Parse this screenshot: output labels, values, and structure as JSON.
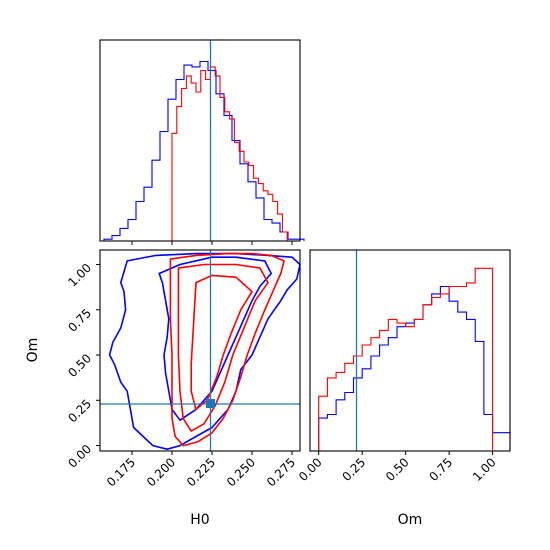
{
  "colors": {
    "series1": "#0000ff",
    "series2": "#ff0000",
    "truth": "#1f77b4",
    "axis": "#000000"
  },
  "chart_data": {
    "type": "corner",
    "parameters": [
      "H0",
      "Om"
    ],
    "truth": {
      "H0": 0.227,
      "Om": 0.22
    },
    "panels": [
      {
        "id": "hist-H0",
        "type": "histogram",
        "xlim": [
          0.155,
          0.28
        ],
        "ylim": [
          0,
          1.12
        ],
        "show_x_ticklabels": false,
        "series": [
          {
            "color": "blue",
            "edges": [
              0.1575,
              0.1625,
              0.1675,
              0.1725,
              0.1775,
              0.1825,
              0.1875,
              0.1925,
              0.1975,
              0.2025,
              0.2075,
              0.2125,
              0.2175,
              0.2225,
              0.2275,
              0.2325,
              0.2375,
              0.2425,
              0.2475,
              0.2525,
              0.2575,
              0.2625,
              0.2675,
              0.2725,
              0.2775,
              0.2825
            ],
            "values": [
              0.01,
              0.03,
              0.07,
              0.12,
              0.22,
              0.3,
              0.45,
              0.61,
              0.79,
              0.9,
              0.98,
              0.97,
              1.0,
              0.95,
              0.82,
              0.7,
              0.56,
              0.43,
              0.33,
              0.24,
              0.12,
              0.1,
              0.05,
              0.01,
              0.01
            ]
          },
          {
            "color": "red",
            "edges": [
              0.2,
              0.203,
              0.206,
              0.209,
              0.212,
              0.215,
              0.218,
              0.221,
              0.224,
              0.227,
              0.23,
              0.233,
              0.236,
              0.239,
              0.242,
              0.245,
              0.248,
              0.251,
              0.254,
              0.257,
              0.26,
              0.263,
              0.266,
              0.269,
              0.272
            ],
            "values": [
              0.6,
              0.75,
              0.85,
              0.92,
              0.88,
              0.83,
              0.95,
              0.9,
              0.97,
              0.92,
              0.8,
              0.72,
              0.68,
              0.55,
              0.5,
              0.44,
              0.42,
              0.35,
              0.32,
              0.28,
              0.26,
              0.22,
              0.15,
              0.05
            ]
          }
        ]
      },
      {
        "id": "contour-H0-Om",
        "type": "contour",
        "xlabel": "H0",
        "ylabel": "Om",
        "xlim": [
          0.155,
          0.28
        ],
        "ylim": [
          -0.03,
          1.08
        ],
        "xticks": [
          "0.175",
          "0.200",
          "0.225",
          "0.250",
          "0.275"
        ],
        "yticks": [
          "0.00",
          "0.25",
          "0.50",
          "0.75",
          "1.00"
        ],
        "series": [
          {
            "color": "blue",
            "levels": [
              [
                [
                  0.172,
                  1.02
                ],
                [
                  0.19,
                  1.05
                ],
                [
                  0.215,
                  1.06
                ],
                [
                  0.24,
                  1.06
                ],
                [
                  0.26,
                  1.05
                ],
                [
                  0.275,
                  1.04
                ],
                [
                  0.28,
                  1.0
                ],
                [
                  0.278,
                  0.92
                ],
                [
                  0.272,
                  0.86
                ],
                [
                  0.268,
                  0.8
                ],
                [
                  0.26,
                  0.7
                ],
                [
                  0.255,
                  0.6
                ],
                [
                  0.25,
                  0.5
                ],
                [
                  0.243,
                  0.42
                ],
                [
                  0.24,
                  0.3
                ],
                [
                  0.235,
                  0.2
                ],
                [
                  0.225,
                  0.1
                ],
                [
                  0.215,
                  0.05
                ],
                [
                  0.205,
                  0.0
                ],
                [
                  0.197,
                  -0.02
                ],
                [
                  0.188,
                  0.0
                ],
                [
                  0.182,
                  0.05
                ],
                [
                  0.176,
                  0.1
                ],
                [
                  0.174,
                  0.2
                ],
                [
                  0.172,
                  0.3
                ],
                [
                  0.168,
                  0.35
                ],
                [
                  0.164,
                  0.45
                ],
                [
                  0.161,
                  0.5
                ],
                [
                  0.163,
                  0.57
                ],
                [
                  0.168,
                  0.65
                ],
                [
                  0.171,
                  0.75
                ],
                [
                  0.17,
                  0.85
                ],
                [
                  0.168,
                  0.9
                ],
                [
                  0.172,
                  1.02
                ]
              ],
              [
                [
                  0.192,
                  0.95
                ],
                [
                  0.205,
                  1.0
                ],
                [
                  0.225,
                  1.04
                ],
                [
                  0.24,
                  1.04
                ],
                [
                  0.258,
                  1.02
                ],
                [
                  0.262,
                  0.95
                ],
                [
                  0.255,
                  0.88
                ],
                [
                  0.25,
                  0.8
                ],
                [
                  0.245,
                  0.7
                ],
                [
                  0.24,
                  0.6
                ],
                [
                  0.235,
                  0.5
                ],
                [
                  0.23,
                  0.4
                ],
                [
                  0.225,
                  0.3
                ],
                [
                  0.215,
                  0.2
                ],
                [
                  0.205,
                  0.14
                ],
                [
                  0.2,
                  0.2
                ],
                [
                  0.198,
                  0.3
                ],
                [
                  0.196,
                  0.4
                ],
                [
                  0.195,
                  0.5
                ],
                [
                  0.197,
                  0.6
                ],
                [
                  0.198,
                  0.7
                ],
                [
                  0.196,
                  0.8
                ],
                [
                  0.194,
                  0.9
                ],
                [
                  0.192,
                  0.95
                ]
              ]
            ]
          },
          {
            "color": "red",
            "levels": [
              [
                [
                  0.199,
                  1.03
                ],
                [
                  0.215,
                  1.05
                ],
                [
                  0.235,
                  1.06
                ],
                [
                  0.25,
                  1.06
                ],
                [
                  0.262,
                  1.05
                ],
                [
                  0.27,
                  1.02
                ],
                [
                  0.268,
                  0.95
                ],
                [
                  0.263,
                  0.85
                ],
                [
                  0.258,
                  0.75
                ],
                [
                  0.252,
                  0.62
                ],
                [
                  0.247,
                  0.5
                ],
                [
                  0.243,
                  0.38
                ],
                [
                  0.238,
                  0.25
                ],
                [
                  0.232,
                  0.15
                ],
                [
                  0.225,
                  0.07
                ],
                [
                  0.216,
                  0.02
                ],
                [
                  0.207,
                  0.0
                ],
                [
                  0.202,
                  0.05
                ],
                [
                  0.2,
                  0.15
                ],
                [
                  0.2,
                  0.3
                ],
                [
                  0.2,
                  0.5
                ],
                [
                  0.199,
                  0.7
                ],
                [
                  0.199,
                  0.85
                ],
                [
                  0.199,
                  1.03
                ]
              ],
              [
                [
                  0.204,
                  0.98
                ],
                [
                  0.22,
                  1.0
                ],
                [
                  0.24,
                  1.0
                ],
                [
                  0.255,
                  0.98
                ],
                [
                  0.26,
                  0.9
                ],
                [
                  0.252,
                  0.8
                ],
                [
                  0.245,
                  0.65
                ],
                [
                  0.238,
                  0.5
                ],
                [
                  0.233,
                  0.35
                ],
                [
                  0.227,
                  0.22
                ],
                [
                  0.22,
                  0.12
                ],
                [
                  0.212,
                  0.08
                ],
                [
                  0.207,
                  0.15
                ],
                [
                  0.205,
                  0.3
                ],
                [
                  0.204,
                  0.5
                ],
                [
                  0.204,
                  0.7
                ],
                [
                  0.204,
                  0.85
                ],
                [
                  0.204,
                  0.98
                ]
              ],
              [
                [
                  0.215,
                  0.9
                ],
                [
                  0.225,
                  0.94
                ],
                [
                  0.24,
                  0.93
                ],
                [
                  0.25,
                  0.85
                ],
                [
                  0.243,
                  0.75
                ],
                [
                  0.237,
                  0.62
                ],
                [
                  0.232,
                  0.5
                ],
                [
                  0.228,
                  0.38
                ],
                [
                  0.222,
                  0.25
                ],
                [
                  0.215,
                  0.2
                ],
                [
                  0.212,
                  0.3
                ],
                [
                  0.212,
                  0.45
                ],
                [
                  0.213,
                  0.6
                ],
                [
                  0.214,
                  0.75
                ],
                [
                  0.215,
                  0.9
                ]
              ]
            ]
          }
        ]
      },
      {
        "id": "hist-Om",
        "type": "histogram",
        "xlabel": "Om",
        "xlim": [
          -0.05,
          1.1
        ],
        "ylim": [
          0,
          1.1
        ],
        "xticks": [
          "0.00",
          "0.25",
          "0.50",
          "0.75",
          "1.00"
        ],
        "series": [
          {
            "color": "blue",
            "edges": [
              -0.05,
              0.0,
              0.05,
              0.1,
              0.15,
              0.2,
              0.25,
              0.3,
              0.35,
              0.4,
              0.45,
              0.5,
              0.55,
              0.6,
              0.65,
              0.7,
              0.75,
              0.8,
              0.85,
              0.9,
              0.95,
              1.0,
              1.05,
              1.1
            ],
            "values": [
              0.0,
              0.18,
              0.2,
              0.28,
              0.32,
              0.4,
              0.45,
              0.52,
              0.58,
              0.62,
              0.68,
              0.7,
              0.72,
              0.8,
              0.86,
              0.9,
              0.82,
              0.76,
              0.72,
              0.6,
              0.2,
              0.1,
              0.1
            ]
          },
          {
            "color": "red",
            "edges": [
              -0.05,
              0.0,
              0.05,
              0.1,
              0.15,
              0.2,
              0.25,
              0.3,
              0.35,
              0.4,
              0.45,
              0.5,
              0.55,
              0.6,
              0.65,
              0.7,
              0.75,
              0.8,
              0.85,
              0.9,
              0.95,
              1.0
            ],
            "values": [
              0.0,
              0.3,
              0.4,
              0.43,
              0.48,
              0.52,
              0.58,
              0.62,
              0.66,
              0.72,
              0.7,
              0.68,
              0.72,
              0.8,
              0.84,
              0.86,
              0.9,
              0.9,
              0.92,
              1.0,
              1.0
            ]
          }
        ]
      }
    ]
  }
}
